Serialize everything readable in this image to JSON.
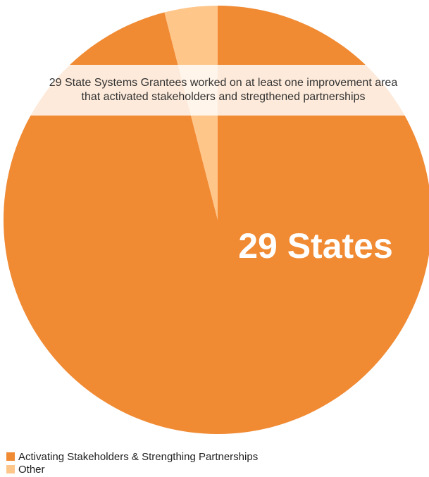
{
  "chart_data": {
    "type": "pie",
    "categories": [
      "Activating Stakeholders & Strengthing Partnerships",
      "Other"
    ],
    "values": [
      96,
      4
    ],
    "colors": [
      "#F08A33",
      "#FFC68A"
    ],
    "title": "",
    "annotation_lines": [
      "29 State Systems Grantees worked on at least one improvement area",
      "that activated stakeholders and stregthened partnerships"
    ],
    "slice_label": "29 States",
    "legend": {
      "placement": "bottom-left",
      "entries": [
        "Activating Stakeholders & Strengthing Partnerships",
        "Other"
      ]
    }
  }
}
